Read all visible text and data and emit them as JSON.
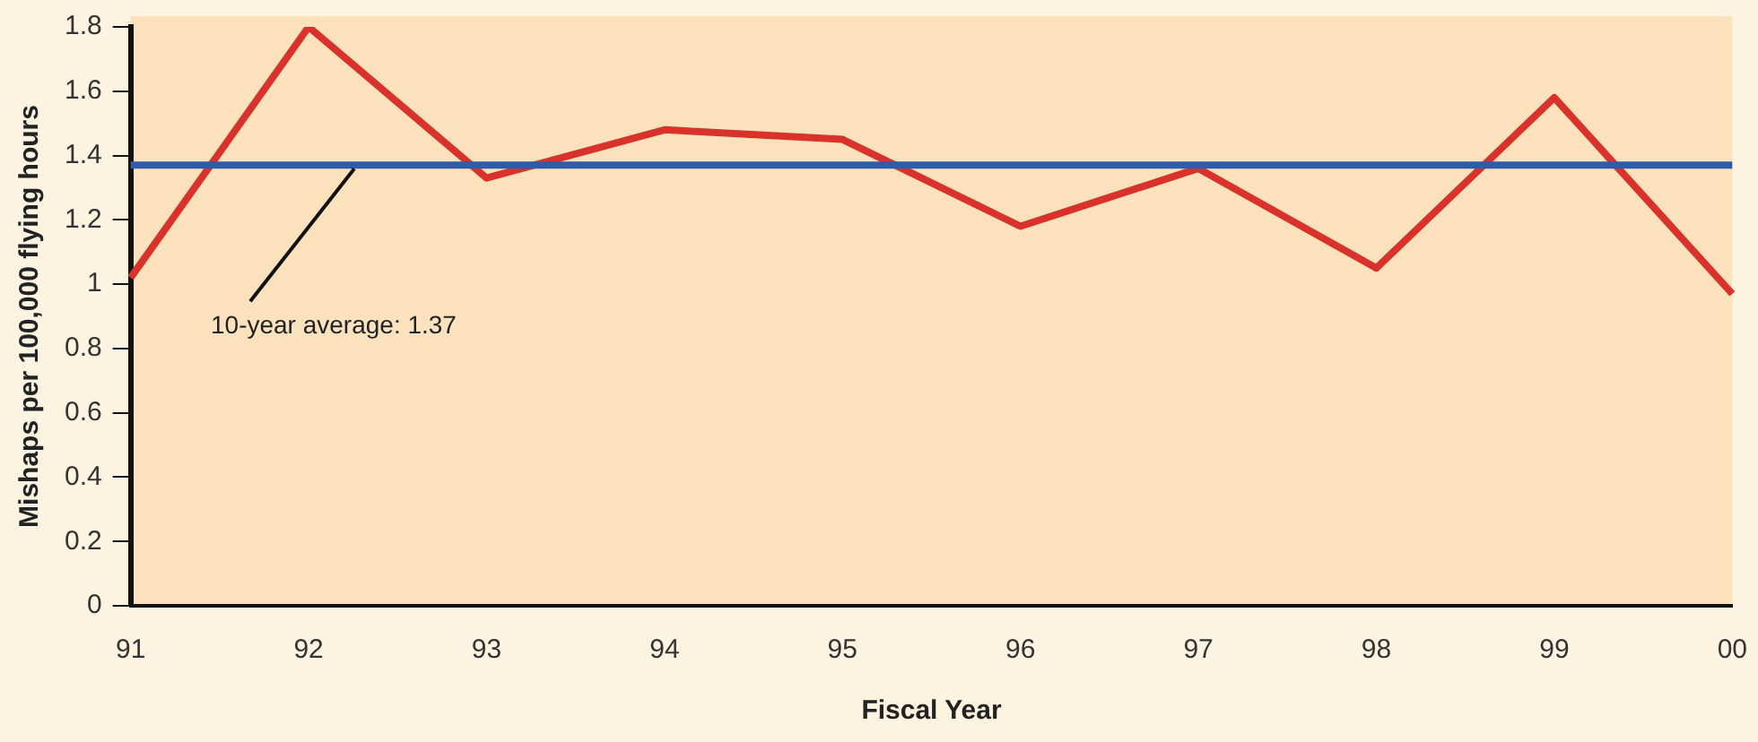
{
  "chart_data": {
    "type": "line",
    "xlabel": "Fiscal Year",
    "ylabel": "Mishaps per 100,000 flying hours",
    "categories": [
      "91",
      "92",
      "93",
      "94",
      "95",
      "96",
      "97",
      "98",
      "99",
      "00"
    ],
    "series": [
      {
        "color": "#d8322a",
        "values": [
          1.02,
          1.8,
          1.33,
          1.48,
          1.45,
          1.18,
          1.36,
          1.05,
          1.58,
          0.97
        ]
      }
    ],
    "ylim": [
      0,
      1.8
    ],
    "yticks": [
      0,
      0.2,
      0.4,
      0.6,
      0.8,
      1,
      1.2,
      1.4,
      1.6,
      1.8
    ],
    "ref_lines": [
      {
        "axis": "y",
        "value": 1.37,
        "label": "10-year average: 1.37",
        "color": "#2f5ba8"
      }
    ],
    "grid": false,
    "legend": false,
    "marker": "none",
    "line_style": "solid"
  }
}
